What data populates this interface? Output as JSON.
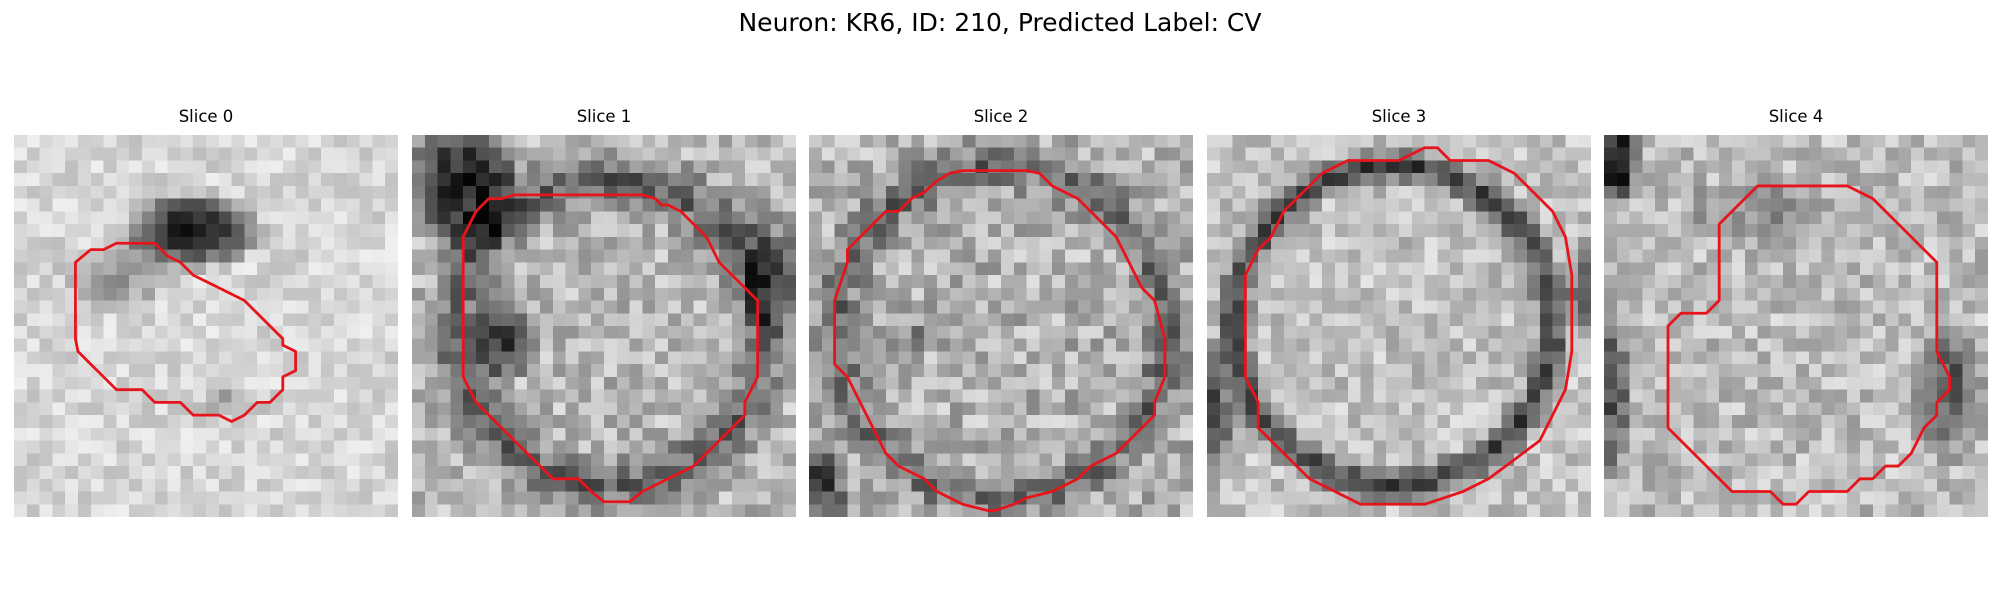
{
  "figure": {
    "title": "Neuron: KR6, ID: 210, Predicted Label: CV"
  },
  "panels": [
    {
      "title": "Slice 0",
      "contour_color": "#e8141c"
    },
    {
      "title": "Slice 1",
      "contour_color": "#e8141c"
    },
    {
      "title": "Slice 2",
      "contour_color": "#e8141c"
    },
    {
      "title": "Slice 3",
      "contour_color": "#e8141c"
    },
    {
      "title": "Slice 4",
      "contour_color": "#e8141c"
    }
  ],
  "colormap": "gray",
  "grid": false
}
